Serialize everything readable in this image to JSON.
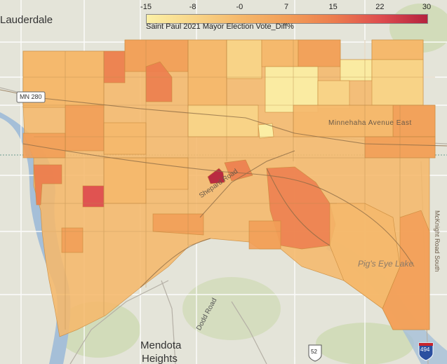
{
  "map": {
    "title": "Saint Paul 2021 Mayor Election Vote_Diff%",
    "legend_ticks": [
      "-15",
      "-8",
      "-0",
      "7",
      "15",
      "22",
      "30"
    ],
    "color_ramp": [
      "#fbf0a6",
      "#f8d588",
      "#f5b86b",
      "#f29e58",
      "#ec7d4e",
      "#de4d4f",
      "#b5233e"
    ],
    "base_colors": {
      "background": "#e6e4df",
      "water": "#a5bfd8",
      "green": "#cbd8ad",
      "road": "#ffffff"
    }
  },
  "places": {
    "lauderdale": "Lauderdale",
    "mn280": "MN 280",
    "minnehaha": "Minnehaha Avenue East",
    "shepard_road": "Shepard Road",
    "pigs_eye": "Pig's Eye Lake",
    "mcknight": "McKnight Road South",
    "dodd_road": "Dodd Road",
    "mendota": "Mendota",
    "heights": "Heights",
    "us52": "52",
    "i494": "494"
  }
}
